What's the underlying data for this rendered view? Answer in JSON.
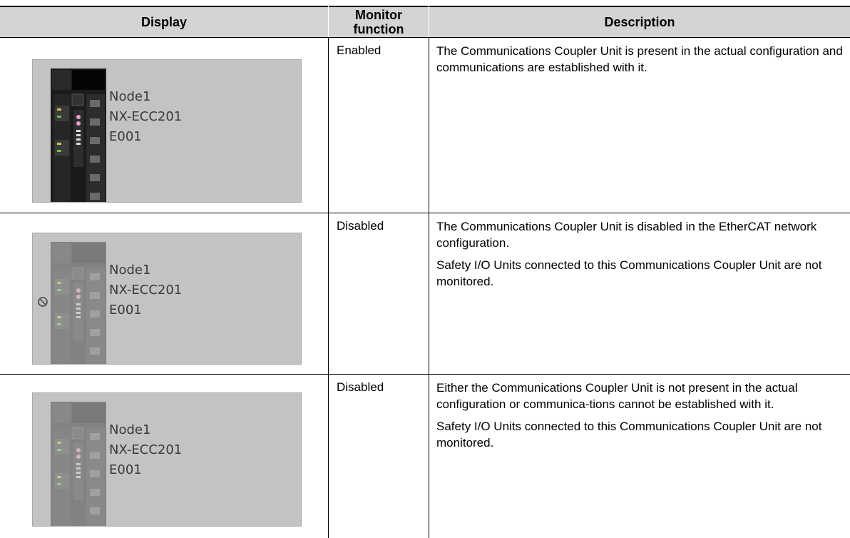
{
  "table": {
    "header": [
      "Display",
      "Monitor function",
      "Description"
    ],
    "rows": [
      {
        "display": [
          "Node1",
          "NX-ECC201",
          "E001"
        ],
        "function": "Enabled",
        "description": [
          "The Communications Coupler Unit is present in the actual configuration and communications are established with it."
        ]
      },
      {
        "display": [
          "Node1",
          "NX-ECC201",
          "E001"
        ],
        "function": "Disabled",
        "description": [
          "The Communications Coupler Unit is disabled in the EtherCAT network configuration.",
          "Safety I/O Units connected to this Communications Coupler Unit are not monitored."
        ]
      },
      {
        "display": [
          "Node1",
          "NX-ECC201",
          "E001"
        ],
        "function": "Disabled",
        "description": [
          "Either the Communications Coupler Unit is not present in the actual configuration or communica-tions cannot be established with it.",
          "Safety I/O Units connected to this Communications Coupler Unit are not monitored."
        ]
      }
    ]
  }
}
